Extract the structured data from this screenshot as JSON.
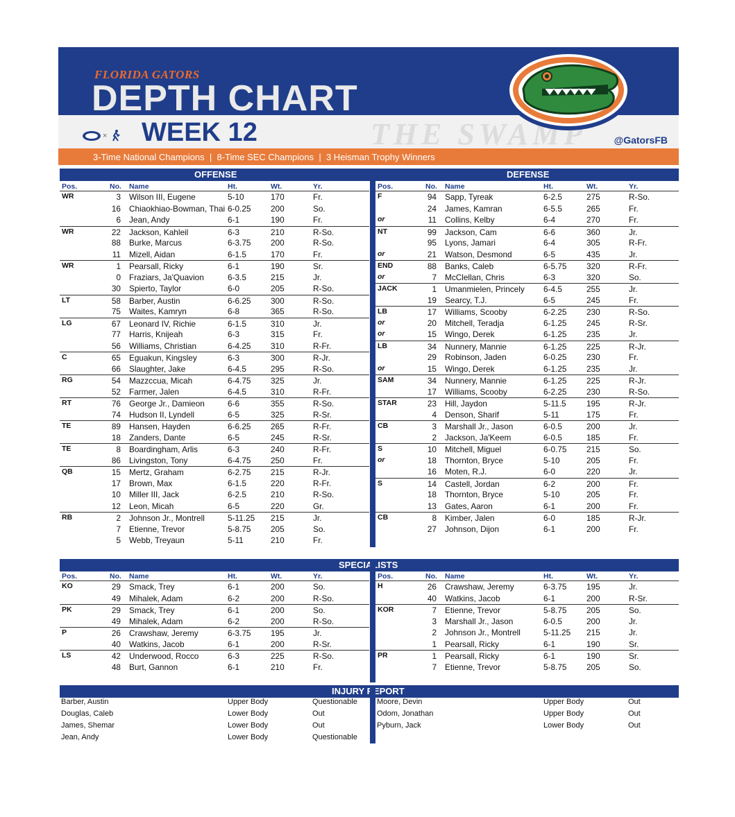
{
  "header": {
    "brand": "FLORIDA GATORS",
    "title": "DEPTH CHART",
    "week": "WEEK 12",
    "background_text": "THE SWAMP",
    "twitter": "@GatorsFB",
    "tagline": "3-Time National Champions  |  8-Time SEC Champions  |  3 Heisman Trophy Winners",
    "colors": {
      "blue": "#1f3d8a",
      "orange": "#e87b3a",
      "green": "#2f8a3e"
    }
  },
  "labels": {
    "offense": "OFFENSE",
    "defense": "DEFENSE",
    "specialists": "SPECIALISTS",
    "injury": "INJURY REPORT",
    "cols": {
      "pos": "Pos.",
      "no": "No.",
      "name": "Name",
      "ht": "Ht.",
      "wt": "Wt.",
      "yr": "Yr."
    }
  },
  "offense": [
    {
      "pos": "WR",
      "players": [
        {
          "no": "3",
          "name": "Wilson III, Eugene",
          "ht": "5-10",
          "wt": "170",
          "yr": "Fr."
        },
        {
          "no": "16",
          "name": "Chiaokhiao-Bowman, Thai",
          "ht": "6-0.25",
          "wt": "200",
          "yr": "So."
        },
        {
          "no": "6",
          "name": "Jean, Andy",
          "ht": "6-1",
          "wt": "190",
          "yr": "Fr."
        }
      ]
    },
    {
      "pos": "WR",
      "players": [
        {
          "no": "22",
          "name": "Jackson, Kahleil",
          "ht": "6-3",
          "wt": "210",
          "yr": "R-So."
        },
        {
          "no": "88",
          "name": "Burke, Marcus",
          "ht": "6-3.75",
          "wt": "200",
          "yr": "R-So."
        },
        {
          "no": "11",
          "name": "Mizell, Aidan",
          "ht": "6-1.5",
          "wt": "170",
          "yr": "Fr."
        }
      ]
    },
    {
      "pos": "WR",
      "players": [
        {
          "no": "1",
          "name": "Pearsall, Ricky",
          "ht": "6-1",
          "wt": "190",
          "yr": "Sr."
        },
        {
          "no": "0",
          "name": "Fraziars, Ja'Quavion",
          "ht": "6-3.5",
          "wt": "215",
          "yr": "Jr."
        },
        {
          "no": "30",
          "name": "Spierto, Taylor",
          "ht": "6-0",
          "wt": "205",
          "yr": "R-So."
        }
      ]
    },
    {
      "pos": "LT",
      "players": [
        {
          "no": "58",
          "name": "Barber, Austin",
          "ht": "6-6.25",
          "wt": "300",
          "yr": "R-So."
        },
        {
          "no": "75",
          "name": "Waites, Kamryn",
          "ht": "6-8",
          "wt": "365",
          "yr": "R-So."
        }
      ]
    },
    {
      "pos": "LG",
      "players": [
        {
          "no": "67",
          "name": "Leonard IV, Richie",
          "ht": "6-1.5",
          "wt": "310",
          "yr": "Jr."
        },
        {
          "no": "77",
          "name": "Harris, Knijeah",
          "ht": "6-3",
          "wt": "315",
          "yr": "Fr."
        },
        {
          "no": "56",
          "name": "Williams, Christian",
          "ht": "6-4.25",
          "wt": "310",
          "yr": "R-Fr."
        }
      ]
    },
    {
      "pos": "C",
      "players": [
        {
          "no": "65",
          "name": "Eguakun, Kingsley",
          "ht": "6-3",
          "wt": "300",
          "yr": "R-Jr."
        },
        {
          "no": "66",
          "name": "Slaughter, Jake",
          "ht": "6-4.5",
          "wt": "295",
          "yr": "R-So."
        }
      ]
    },
    {
      "pos": "RG",
      "players": [
        {
          "no": "54",
          "name": "Mazzccua, Micah",
          "ht": "6-4.75",
          "wt": "325",
          "yr": "Jr."
        },
        {
          "no": "52",
          "name": "Farmer, Jalen",
          "ht": "6-4.5",
          "wt": "310",
          "yr": "R-Fr."
        }
      ]
    },
    {
      "pos": "RT",
      "players": [
        {
          "no": "76",
          "name": "George Jr., Damieon",
          "ht": "6-6",
          "wt": "355",
          "yr": "R-So."
        },
        {
          "no": "74",
          "name": "Hudson II, Lyndell",
          "ht": "6-5",
          "wt": "325",
          "yr": "R-Sr."
        }
      ]
    },
    {
      "pos": "TE",
      "players": [
        {
          "no": "89",
          "name": "Hansen, Hayden",
          "ht": "6-6.25",
          "wt": "265",
          "yr": "R-Fr."
        },
        {
          "no": "18",
          "name": "Zanders, Dante",
          "ht": "6-5",
          "wt": "245",
          "yr": "R-Sr."
        }
      ]
    },
    {
      "pos": "TE",
      "players": [
        {
          "no": "8",
          "name": "Boardingham, Arlis",
          "ht": "6-3",
          "wt": "240",
          "yr": "R-Fr."
        },
        {
          "no": "86",
          "name": "Livingston, Tony",
          "ht": "6-4.75",
          "wt": "250",
          "yr": "Fr."
        }
      ]
    },
    {
      "pos": "QB",
      "players": [
        {
          "no": "15",
          "name": "Mertz, Graham",
          "ht": "6-2.75",
          "wt": "215",
          "yr": "R-Jr."
        },
        {
          "no": "17",
          "name": "Brown, Max",
          "ht": "6-1.5",
          "wt": "220",
          "yr": "R-Fr."
        },
        {
          "no": "10",
          "name": "Miller III, Jack",
          "ht": "6-2.5",
          "wt": "210",
          "yr": "R-So."
        },
        {
          "no": "12",
          "name": "Leon, Micah",
          "ht": "6-5",
          "wt": "220",
          "yr": "Gr."
        }
      ]
    },
    {
      "pos": "RB",
      "players": [
        {
          "no": "2",
          "name": "Johnson Jr., Montrell",
          "ht": "5-11.25",
          "wt": "215",
          "yr": "Jr."
        },
        {
          "no": "7",
          "name": "Etienne, Trevor",
          "ht": "5-8.75",
          "wt": "205",
          "yr": "So."
        },
        {
          "no": "5",
          "name": "Webb, Treyaun",
          "ht": "5-11",
          "wt": "210",
          "yr": "Fr."
        }
      ]
    }
  ],
  "defense": [
    {
      "pos": "F",
      "players": [
        {
          "no": "94",
          "name": "Sapp, Tyreak",
          "ht": "6-2.5",
          "wt": "275",
          "yr": "R-So."
        },
        {
          "no": "24",
          "name": "James, Kamran",
          "ht": "6-5.5",
          "wt": "265",
          "yr": "Fr."
        },
        {
          "tag": "or",
          "no": "11",
          "name": "Collins, Kelby",
          "ht": "6-4",
          "wt": "270",
          "yr": "Fr."
        }
      ]
    },
    {
      "pos": "NT",
      "players": [
        {
          "no": "99",
          "name": "Jackson, Cam",
          "ht": "6-6",
          "wt": "360",
          "yr": "Jr."
        },
        {
          "no": "95",
          "name": "Lyons, Jamari",
          "ht": "6-4",
          "wt": "305",
          "yr": "R-Fr."
        },
        {
          "tag": "or",
          "no": "21",
          "name": "Watson, Desmond",
          "ht": "6-5",
          "wt": "435",
          "yr": "Jr."
        }
      ]
    },
    {
      "pos": "END",
      "players": [
        {
          "no": "88",
          "name": "Banks, Caleb",
          "ht": "6-5.75",
          "wt": "320",
          "yr": "R-Fr."
        },
        {
          "tag": "or",
          "no": "7",
          "name": "McClellan, Chris",
          "ht": "6-3",
          "wt": "320",
          "yr": "So."
        }
      ]
    },
    {
      "pos": "JACK",
      "players": [
        {
          "no": "1",
          "name": "Umanmielen, Princely",
          "ht": "6-4.5",
          "wt": "255",
          "yr": "Jr."
        },
        {
          "no": "19",
          "name": "Searcy, T.J.",
          "ht": "6-5",
          "wt": "245",
          "yr": "Fr."
        }
      ]
    },
    {
      "pos": "LB",
      "players": [
        {
          "no": "17",
          "name": "Williams, Scooby",
          "ht": "6-2.25",
          "wt": "230",
          "yr": "R-So."
        },
        {
          "tag": "or",
          "no": "20",
          "name": "Mitchell, Teradja",
          "ht": "6-1.25",
          "wt": "245",
          "yr": "R-Sr."
        },
        {
          "tag": "or",
          "no": "15",
          "name": "Wingo, Derek",
          "ht": "6-1.25",
          "wt": "235",
          "yr": "Jr."
        }
      ]
    },
    {
      "pos": "LB",
      "players": [
        {
          "no": "34",
          "name": "Nunnery, Mannie",
          "ht": "6-1.25",
          "wt": "225",
          "yr": "R-Jr."
        },
        {
          "no": "29",
          "name": "Robinson, Jaden",
          "ht": "6-0.25",
          "wt": "230",
          "yr": "Fr."
        },
        {
          "tag": "or",
          "no": "15",
          "name": "Wingo, Derek",
          "ht": "6-1.25",
          "wt": "235",
          "yr": "Jr."
        }
      ]
    },
    {
      "pos": "SAM",
      "players": [
        {
          "no": "34",
          "name": "Nunnery, Mannie",
          "ht": "6-1.25",
          "wt": "225",
          "yr": "R-Jr."
        },
        {
          "no": "17",
          "name": "Williams, Scooby",
          "ht": "6-2.25",
          "wt": "230",
          "yr": "R-So."
        }
      ]
    },
    {
      "pos": "STAR",
      "players": [
        {
          "no": "23",
          "name": "Hill, Jaydon",
          "ht": "5-11.5",
          "wt": "195",
          "yr": "R-Jr."
        },
        {
          "no": "4",
          "name": "Denson, Sharif",
          "ht": "5-11",
          "wt": "175",
          "yr": "Fr."
        }
      ]
    },
    {
      "pos": "CB",
      "players": [
        {
          "no": "3",
          "name": "Marshall Jr., Jason",
          "ht": "6-0.5",
          "wt": "200",
          "yr": "Jr."
        },
        {
          "no": "2",
          "name": "Jackson, Ja'Keem",
          "ht": "6-0.5",
          "wt": "185",
          "yr": "Fr."
        }
      ]
    },
    {
      "pos": "S",
      "players": [
        {
          "no": "10",
          "name": "Mitchell, Miguel",
          "ht": "6-0.75",
          "wt": "215",
          "yr": "So."
        },
        {
          "tag": "or",
          "no": "18",
          "name": "Thornton, Bryce",
          "ht": "5-10",
          "wt": "205",
          "yr": "Fr."
        },
        {
          "no": "16",
          "name": "Moten, R.J.",
          "ht": "6-0",
          "wt": "220",
          "yr": "Jr."
        }
      ]
    },
    {
      "pos": "S",
      "players": [
        {
          "no": "14",
          "name": "Castell, Jordan",
          "ht": "6-2",
          "wt": "200",
          "yr": "Fr."
        },
        {
          "no": "18",
          "name": "Thornton, Bryce",
          "ht": "5-10",
          "wt": "205",
          "yr": "Fr."
        },
        {
          "no": "13",
          "name": "Gates, Aaron",
          "ht": "6-1",
          "wt": "200",
          "yr": "Fr."
        }
      ]
    },
    {
      "pos": "CB",
      "players": [
        {
          "no": "8",
          "name": "Kimber, Jalen",
          "ht": "6-0",
          "wt": "185",
          "yr": "R-Jr."
        },
        {
          "no": "27",
          "name": "Johnson, Dijon",
          "ht": "6-1",
          "wt": "200",
          "yr": "Fr."
        }
      ]
    }
  ],
  "specialists_left": [
    {
      "pos": "KO",
      "players": [
        {
          "no": "29",
          "name": "Smack, Trey",
          "ht": "6-1",
          "wt": "200",
          "yr": "So."
        },
        {
          "no": "49",
          "name": "Mihalek, Adam",
          "ht": "6-2",
          "wt": "200",
          "yr": "R-So."
        }
      ]
    },
    {
      "pos": "PK",
      "players": [
        {
          "no": "29",
          "name": "Smack, Trey",
          "ht": "6-1",
          "wt": "200",
          "yr": "So."
        },
        {
          "no": "49",
          "name": "Mihalek, Adam",
          "ht": "6-2",
          "wt": "200",
          "yr": "R-So."
        }
      ]
    },
    {
      "pos": "P",
      "players": [
        {
          "no": "26",
          "name": "Crawshaw, Jeremy",
          "ht": "6-3.75",
          "wt": "195",
          "yr": "Jr."
        },
        {
          "no": "40",
          "name": "Watkins, Jacob",
          "ht": "6-1",
          "wt": "200",
          "yr": "R-Sr."
        }
      ]
    },
    {
      "pos": "LS",
      "players": [
        {
          "no": "42",
          "name": "Underwood, Rocco",
          "ht": "6-3",
          "wt": "225",
          "yr": "R-So."
        },
        {
          "no": "48",
          "name": "Burt, Gannon",
          "ht": "6-1",
          "wt": "210",
          "yr": "Fr."
        }
      ]
    }
  ],
  "specialists_right": [
    {
      "pos": "H",
      "players": [
        {
          "no": "26",
          "name": "Crawshaw, Jeremy",
          "ht": "6-3.75",
          "wt": "195",
          "yr": "Jr."
        },
        {
          "no": "40",
          "name": "Watkins, Jacob",
          "ht": "6-1",
          "wt": "200",
          "yr": "R-Sr."
        }
      ]
    },
    {
      "pos": "KOR",
      "players": [
        {
          "no": "7",
          "name": "Etienne, Trevor",
          "ht": "5-8.75",
          "wt": "205",
          "yr": "So."
        },
        {
          "no": "3",
          "name": "Marshall Jr., Jason",
          "ht": "6-0.5",
          "wt": "200",
          "yr": "Jr."
        },
        {
          "no": "2",
          "name": "Johnson Jr., Montrell",
          "ht": "5-11.25",
          "wt": "215",
          "yr": "Jr."
        },
        {
          "no": "1",
          "name": "Pearsall, Ricky",
          "ht": "6-1",
          "wt": "190",
          "yr": "Sr."
        }
      ]
    },
    {
      "pos": "PR",
      "players": [
        {
          "no": "1",
          "name": "Pearsall, Ricky",
          "ht": "6-1",
          "wt": "190",
          "yr": "Sr."
        },
        {
          "no": "7",
          "name": "Etienne, Trevor",
          "ht": "5-8.75",
          "wt": "205",
          "yr": "So."
        }
      ]
    }
  ],
  "injury_left": [
    {
      "name": "Barber, Austin",
      "part": "Upper Body",
      "status": "Questionable"
    },
    {
      "name": "Douglas, Caleb",
      "part": "Lower Body",
      "status": "Out"
    },
    {
      "name": "James, Shemar",
      "part": "Lower Body",
      "status": "Out"
    },
    {
      "name": "Jean, Andy",
      "part": "Lower Body",
      "status": "Questionable"
    }
  ],
  "injury_right": [
    {
      "name": "Moore, Devin",
      "part": "Upper Body",
      "status": "Out"
    },
    {
      "name": "Odom, Jonathan",
      "part": "Upper Body",
      "status": "Out"
    },
    {
      "name": "Pyburn, Jack",
      "part": "Lower Body",
      "status": "Out"
    }
  ]
}
